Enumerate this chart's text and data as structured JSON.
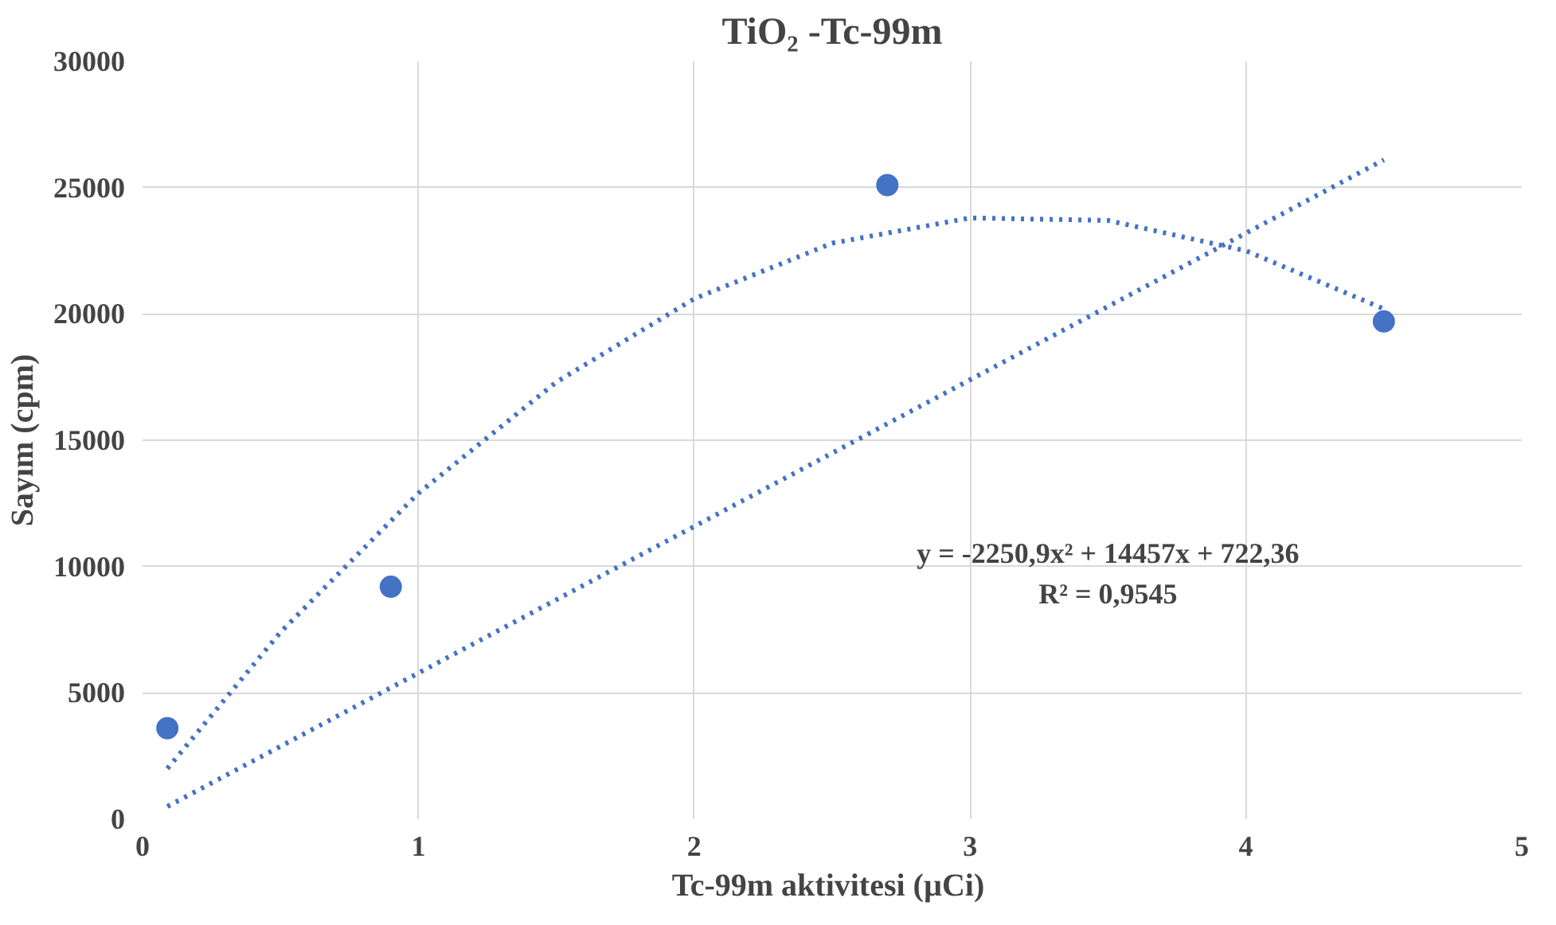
{
  "chart_data": {
    "type": "scatter",
    "title": "TiO₂ -Tc-99m",
    "xlabel": "Tc-99m  aktivitesi (µCi)",
    "ylabel": "Sayım (cpm)",
    "xlim": [
      0,
      5
    ],
    "xticks": [
      0,
      1,
      2,
      3,
      4,
      5
    ],
    "ylim": [
      0,
      30000
    ],
    "yticks": [
      0,
      5000,
      10000,
      15000,
      20000,
      25000,
      30000
    ],
    "grid": true,
    "series": [
      {
        "marker": "circle",
        "color": "#4472c4",
        "x": [
          0.09,
          0.9,
          2.7,
          4.5
        ],
        "values": [
          3600,
          9200,
          25100,
          19700
        ]
      },
      {
        "type": "line",
        "line_style": "dotted",
        "color": "#4472c4",
        "x": [
          0.09,
          0.5,
          1,
          1.5,
          2,
          2.5,
          3,
          3.5,
          4,
          4.5
        ],
        "values": [
          2000,
          7400,
          12900,
          17300,
          20600,
          22800,
          23800,
          23700,
          22500,
          20200
        ]
      },
      {
        "type": "line",
        "line_style": "dotted",
        "color": "#4472c4",
        "x": [
          0.09,
          4.5
        ],
        "values": [
          500,
          26100
        ]
      }
    ],
    "annotations": [
      "y = -2250,9x² + 14457x + 722,36",
      "R² = 0,9545"
    ]
  }
}
